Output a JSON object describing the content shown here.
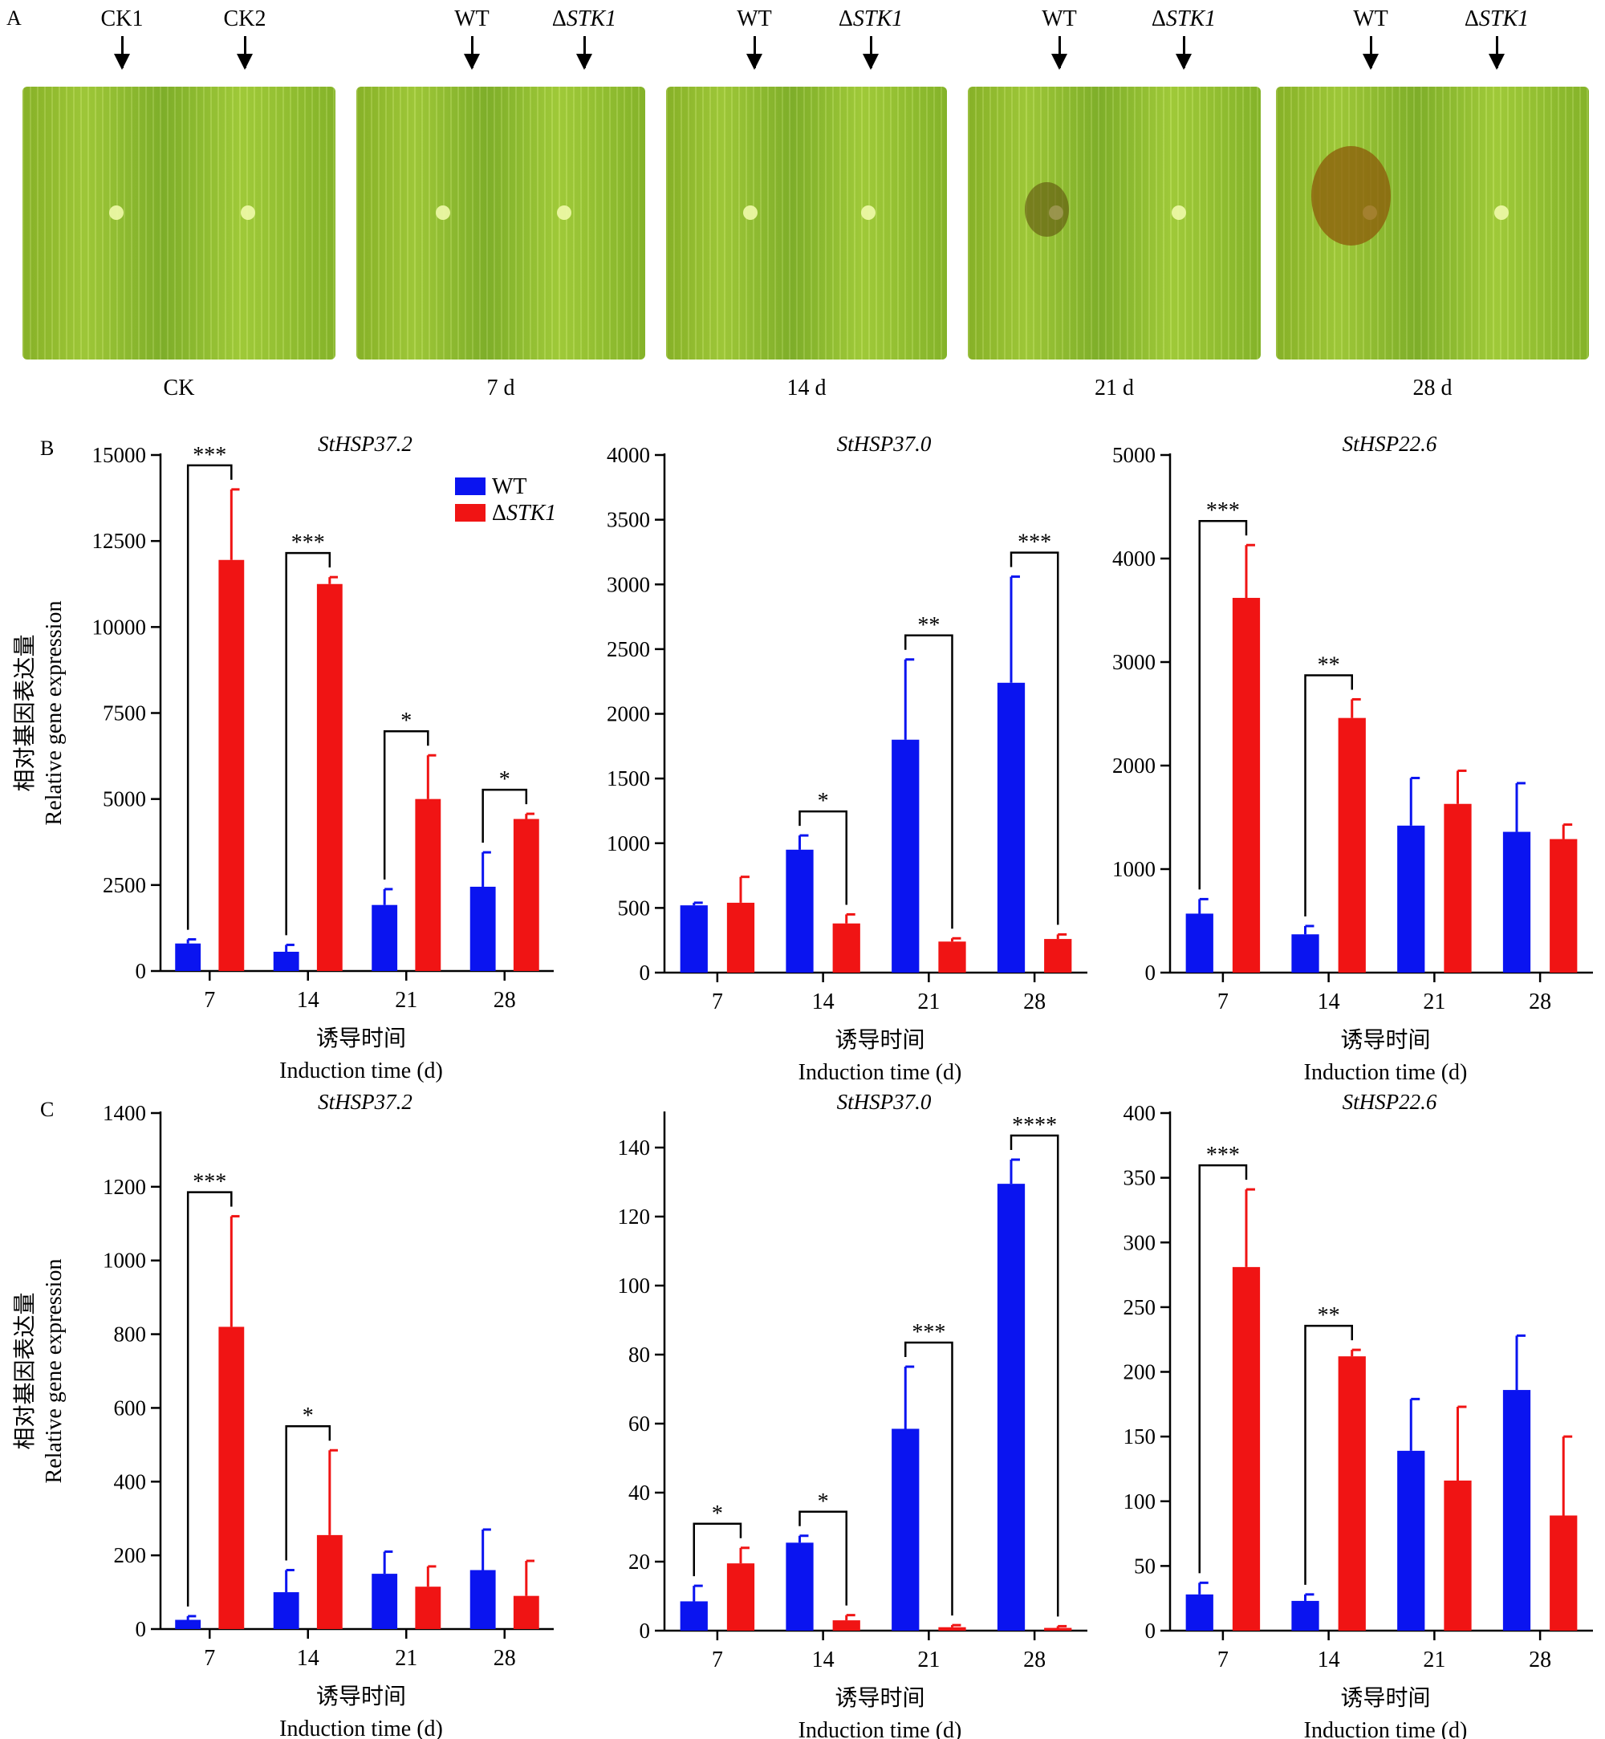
{
  "panel_a": {
    "letter": "A",
    "leaves": [
      {
        "markers": [
          "CK1",
          "CK2"
        ],
        "label": "CK"
      },
      {
        "markers": [
          "WT",
          "ΔSTK1"
        ],
        "label": "7 d"
      },
      {
        "markers": [
          "WT",
          "ΔSTK1"
        ],
        "label": "14 d"
      },
      {
        "markers": [
          "WT",
          "ΔSTK1"
        ],
        "label": "21 d"
      },
      {
        "markers": [
          "WT",
          "ΔSTK1"
        ],
        "label": "28 d"
      }
    ]
  },
  "colors": {
    "WT": "#0a14f0",
    "STK1": "#f01414"
  },
  "legend": {
    "wt": "WT",
    "stk1": "ΔSTK1"
  },
  "axis_text": {
    "ylabel_cn": "相对基因表达量",
    "ylabel_en": "Relative gene expression",
    "xlabel_cn": "诱导时间",
    "xlabel_en": "Induction time (d)"
  },
  "chart_data": [
    {
      "panel": "B",
      "type": "bar",
      "title": "StHSP37.2",
      "categories": [
        "7",
        "14",
        "21",
        "28"
      ],
      "ylim": [
        0,
        15000
      ],
      "yticks": [
        0,
        2500,
        5000,
        7500,
        10000,
        12500,
        15000
      ],
      "series": [
        {
          "name": "WT",
          "values": [
            800,
            560,
            1920,
            2450
          ],
          "errors": [
            120,
            200,
            460,
            1000
          ]
        },
        {
          "name": "ΔSTK1",
          "values": [
            11950,
            11250,
            5000,
            4420
          ],
          "errors": [
            2050,
            200,
            1270,
            150
          ]
        }
      ],
      "significance": [
        {
          "category": 0,
          "label": "***"
        },
        {
          "category": 1,
          "label": "***"
        },
        {
          "category": 2,
          "label": "*"
        },
        {
          "category": 3,
          "label": "*"
        }
      ]
    },
    {
      "panel": "B",
      "type": "bar",
      "title": "StHSP37.0",
      "categories": [
        "7",
        "14",
        "21",
        "28"
      ],
      "ylim": [
        0,
        4000
      ],
      "yticks": [
        0,
        500,
        1000,
        1500,
        2000,
        2500,
        3000,
        3500,
        4000
      ],
      "series": [
        {
          "name": "WT",
          "values": [
            520,
            950,
            1800,
            2240
          ],
          "errors": [
            20,
            110,
            620,
            820
          ]
        },
        {
          "name": "ΔSTK1",
          "values": [
            540,
            380,
            240,
            260
          ],
          "errors": [
            200,
            70,
            25,
            35
          ]
        }
      ],
      "significance": [
        {
          "category": 1,
          "label": "*"
        },
        {
          "category": 2,
          "label": "**"
        },
        {
          "category": 3,
          "label": "***"
        }
      ]
    },
    {
      "panel": "B",
      "type": "bar",
      "title": "StHSP22.6",
      "categories": [
        "7",
        "14",
        "21",
        "28"
      ],
      "ylim": [
        0,
        5000
      ],
      "yticks": [
        0,
        1000,
        2000,
        3000,
        4000,
        5000
      ],
      "series": [
        {
          "name": "WT",
          "values": [
            570,
            370,
            1420,
            1360
          ],
          "errors": [
            140,
            80,
            460,
            470
          ]
        },
        {
          "name": "ΔSTK1",
          "values": [
            3620,
            2460,
            1630,
            1290
          ],
          "errors": [
            510,
            180,
            320,
            140
          ]
        }
      ],
      "significance": [
        {
          "category": 0,
          "label": "***"
        },
        {
          "category": 1,
          "label": "**"
        }
      ]
    },
    {
      "panel": "C",
      "type": "bar",
      "title": "StHSP37.2",
      "categories": [
        "7",
        "14",
        "21",
        "28"
      ],
      "ylim": [
        0,
        1400
      ],
      "yticks": [
        0,
        200,
        400,
        600,
        800,
        1000,
        1200,
        1400
      ],
      "series": [
        {
          "name": "WT",
          "values": [
            25,
            100,
            150,
            160
          ],
          "errors": [
            10,
            60,
            60,
            110
          ]
        },
        {
          "name": "ΔSTK1",
          "values": [
            820,
            255,
            115,
            90
          ],
          "errors": [
            300,
            230,
            55,
            95
          ]
        }
      ],
      "significance": [
        {
          "category": 0,
          "label": "***"
        },
        {
          "category": 1,
          "label": "*"
        }
      ]
    },
    {
      "panel": "C",
      "type": "bar",
      "title": "StHSP37.0",
      "categories": [
        "7",
        "14",
        "21",
        "28"
      ],
      "ylim": [
        0,
        150
      ],
      "yticks": [
        0,
        20,
        40,
        60,
        80,
        100,
        120,
        140
      ],
      "series": [
        {
          "name": "WT",
          "values": [
            8.5,
            25.5,
            58.5,
            129.5
          ],
          "errors": [
            4.5,
            2,
            18,
            7
          ]
        },
        {
          "name": "ΔSTK1",
          "values": [
            19.5,
            3,
            1,
            0.8
          ],
          "errors": [
            4.5,
            1.5,
            0.6,
            0.5
          ]
        }
      ],
      "significance": [
        {
          "category": 0,
          "label": "*"
        },
        {
          "category": 1,
          "label": "*"
        },
        {
          "category": 2,
          "label": "***"
        },
        {
          "category": 3,
          "label": "****"
        }
      ]
    },
    {
      "panel": "C",
      "type": "bar",
      "title": "StHSP22.6",
      "categories": [
        "7",
        "14",
        "21",
        "28"
      ],
      "ylim": [
        0,
        400
      ],
      "yticks": [
        0,
        50,
        100,
        150,
        200,
        250,
        300,
        350,
        400
      ],
      "series": [
        {
          "name": "WT",
          "values": [
            28,
            23,
            139,
            186
          ],
          "errors": [
            9,
            5,
            40,
            42
          ]
        },
        {
          "name": "ΔSTK1",
          "values": [
            281,
            212,
            116,
            89
          ],
          "errors": [
            60,
            5,
            57,
            61
          ]
        }
      ],
      "significance": [
        {
          "category": 0,
          "label": "***"
        },
        {
          "category": 1,
          "label": "**"
        }
      ]
    }
  ]
}
